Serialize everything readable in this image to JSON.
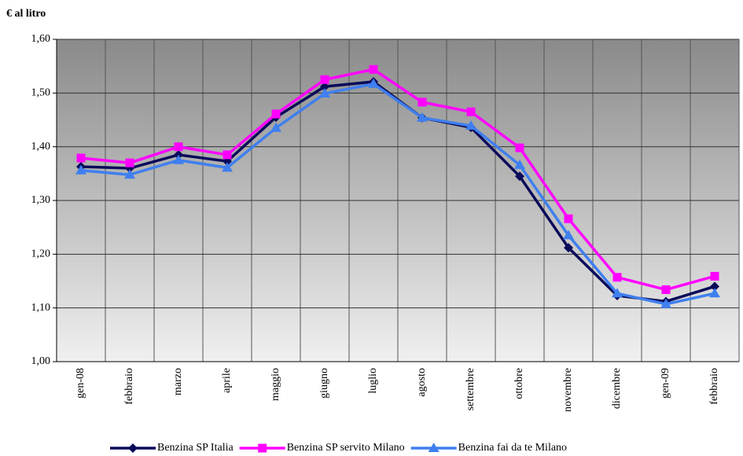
{
  "chart_data": {
    "type": "line",
    "y_label": "€ al litro",
    "categories": [
      "gen-08",
      "febbraio",
      "marzo",
      "aprile",
      "maggio",
      "giugno",
      "luglio",
      "agosto",
      "settembre",
      "ottobre",
      "novembre",
      "dicembre",
      "gen-09",
      "febbraio"
    ],
    "series": [
      {
        "name": "Benzina SP Italia",
        "color": "#0a0a5a",
        "marker": "diamond",
        "values": [
          1.363,
          1.36,
          1.385,
          1.373,
          1.455,
          1.512,
          1.521,
          1.454,
          1.436,
          1.345,
          1.212,
          1.123,
          1.112,
          1.14
        ]
      },
      {
        "name": "Benzina SP servito Milano",
        "color": "#ff00ff",
        "marker": "square",
        "values": [
          1.379,
          1.37,
          1.4,
          1.385,
          1.461,
          1.525,
          1.544,
          1.483,
          1.465,
          1.398,
          1.266,
          1.157,
          1.134,
          1.159
        ]
      },
      {
        "name": "Benzina fai da te Milano",
        "color": "#3f7fef",
        "marker": "triangle",
        "values": [
          1.356,
          1.348,
          1.375,
          1.361,
          1.435,
          1.499,
          1.517,
          1.454,
          1.439,
          1.366,
          1.235,
          1.127,
          1.107,
          1.127
        ]
      }
    ],
    "ylim": [
      1.0,
      1.6
    ],
    "yticks": [
      {
        "value": 1.0,
        "label": "1,00"
      },
      {
        "value": 1.1,
        "label": "1,10"
      },
      {
        "value": 1.2,
        "label": "1,20"
      },
      {
        "value": 1.3,
        "label": "1,30"
      },
      {
        "value": 1.4,
        "label": "1,40"
      },
      {
        "value": 1.5,
        "label": "1,50"
      },
      {
        "value": 1.6,
        "label": "1,60"
      }
    ],
    "grid": true
  }
}
